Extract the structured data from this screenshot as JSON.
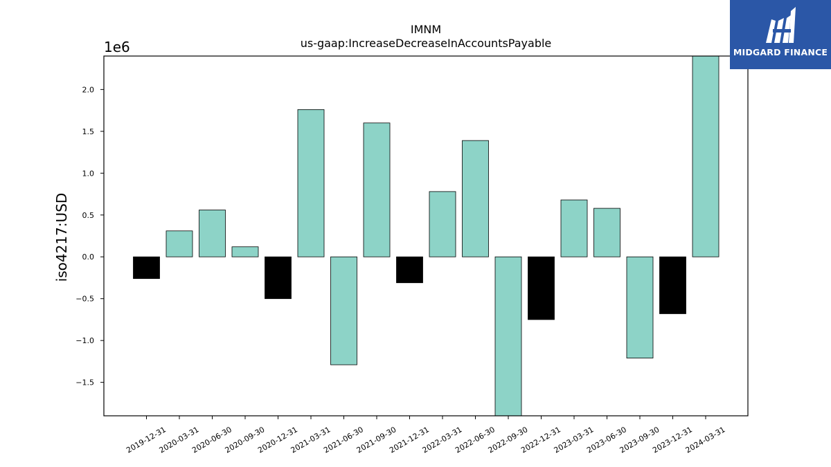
{
  "brand": {
    "name": "MIDGARD FINANCE",
    "logo_icon": "midgard-finance-logo-icon",
    "background_color": "#2b57a7"
  },
  "chart_data": {
    "type": "bar",
    "title": "IMNM",
    "subtitle": "us-gaap:IncreaseDecreaseInAccountsPayable",
    "ylabel": "iso4217:USD",
    "xlabel": "",
    "y_scale_label": "1e6",
    "ylim": [
      -1.9,
      2.4
    ],
    "yticks": [
      -1.5,
      -1.0,
      -0.5,
      0.0,
      0.5,
      1.0,
      1.5,
      2.0
    ],
    "ytick_labels": [
      "−1.5",
      "−1.0",
      "−0.5",
      "0.0",
      "0.5",
      "1.0",
      "1.5",
      "2.0"
    ],
    "grid": false,
    "categories": [
      "2019-12-31",
      "2020-03-31",
      "2020-06-30",
      "2020-09-30",
      "2020-12-31",
      "2021-03-31",
      "2021-06-30",
      "2021-09-30",
      "2021-12-31",
      "2022-03-31",
      "2022-06-30",
      "2022-09-30",
      "2022-12-31",
      "2023-03-31",
      "2023-06-30",
      "2023-09-30",
      "2023-12-31",
      "2024-03-31"
    ],
    "values": [
      -0.26,
      0.31,
      0.56,
      0.12,
      -0.5,
      1.76,
      -1.29,
      1.6,
      -0.31,
      0.78,
      1.39,
      -1.9,
      -0.75,
      0.68,
      0.58,
      -1.21,
      -0.68,
      2.4
    ],
    "bar_colors": [
      "#000000",
      "#8dd3c7",
      "#8dd3c7",
      "#8dd3c7",
      "#000000",
      "#8dd3c7",
      "#8dd3c7",
      "#8dd3c7",
      "#000000",
      "#8dd3c7",
      "#8dd3c7",
      "#8dd3c7",
      "#000000",
      "#8dd3c7",
      "#8dd3c7",
      "#8dd3c7",
      "#000000",
      "#8dd3c7"
    ]
  }
}
